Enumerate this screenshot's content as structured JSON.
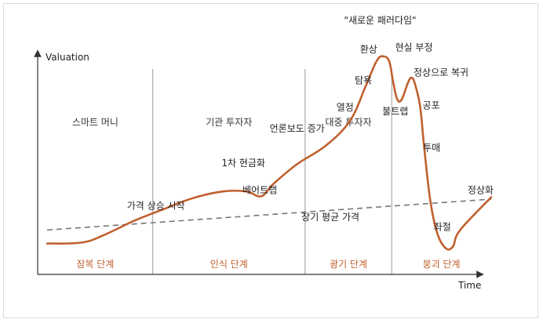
{
  "chart_data": {
    "type": "line",
    "title": "",
    "xlabel": "Time",
    "ylabel": "Valuation",
    "xlim": [
      0,
      100
    ],
    "ylim": [
      0,
      100
    ],
    "grid": false,
    "colors": {
      "curve": "#c0602e",
      "trend": "#777777",
      "phase_text": "#c0602e",
      "axis": "#333333",
      "divider": "#999999"
    },
    "series": [
      {
        "name": "bubble-curve",
        "x": [
          0,
          7.8,
          12.9,
          19.8,
          25.9,
          32.8,
          39.6,
          44.9,
          48.2,
          51.0,
          56.2,
          62.9,
          68.3,
          71.8,
          74.3,
          75.9,
          77.1,
          77.9,
          78.8,
          79.8,
          81.2,
          82.0,
          82.8,
          84.0,
          84.9,
          86.3,
          87.9,
          89.8,
          91.4,
          93.0,
          100
        ],
        "y": [
          3.0,
          3.5,
          7.5,
          15.0,
          20.5,
          26.5,
          30.0,
          30.0,
          27.5,
          34.0,
          44.0,
          54.0,
          67.0,
          85.0,
          98.0,
          100.0,
          97.0,
          87.0,
          78.0,
          77.5,
          86.0,
          89.0,
          86.0,
          74.0,
          53.0,
          25.0,
          8.0,
          0.5,
          1.5,
          10.0,
          27.0
        ]
      },
      {
        "name": "long-term-average",
        "x": [
          0,
          100
        ],
        "y": [
          10.0,
          26.0
        ]
      }
    ],
    "phases": [
      {
        "name": "스마트 머니",
        "stage": "잠복 단계",
        "x_start": 0,
        "x_end": 23.8
      },
      {
        "name": "기관 투자자",
        "stage": "인식 단계",
        "x_start": 23.8,
        "x_end": 58.1
      },
      {
        "name": "대중 투자자",
        "stage": "광기 단계",
        "x_start": 58.1,
        "x_end": 77.6
      },
      {
        "name": "",
        "stage": "붕괴 단계",
        "x_start": 77.6,
        "x_end": 100
      }
    ],
    "annotations": [
      {
        "text": "가격 상승 시작",
        "x": 24.5,
        "y": 21
      },
      {
        "text": "1차 현금화",
        "x": 44.2,
        "y": 43
      },
      {
        "text": "베어트랩",
        "x": 47.9,
        "y": 29
      },
      {
        "text": "언론보도 증가",
        "x": 56.3,
        "y": 61
      },
      {
        "text": "장기 평균 가격",
        "x": 63.8,
        "y": 15
      },
      {
        "text": "열정",
        "x": 67.1,
        "y": 72
      },
      {
        "text": "탐욕",
        "x": 71.2,
        "y": 86
      },
      {
        "text": "환상",
        "x": 72.4,
        "y": 102
      },
      {
        "text": "\"새로운 패러다임\"",
        "x": 75.0,
        "y": 117
      },
      {
        "text": "현실 부정",
        "x": 82.6,
        "y": 103
      },
      {
        "text": "정상으로 복귀",
        "x": 88.7,
        "y": 90
      },
      {
        "text": "불트랩",
        "x": 78.4,
        "y": 70
      },
      {
        "text": "공포",
        "x": 86.5,
        "y": 73
      },
      {
        "text": "투매",
        "x": 86.6,
        "y": 51
      },
      {
        "text": "좌절",
        "x": 89.0,
        "y": 10
      },
      {
        "text": "정상화",
        "x": 97.6,
        "y": 29
      }
    ]
  }
}
